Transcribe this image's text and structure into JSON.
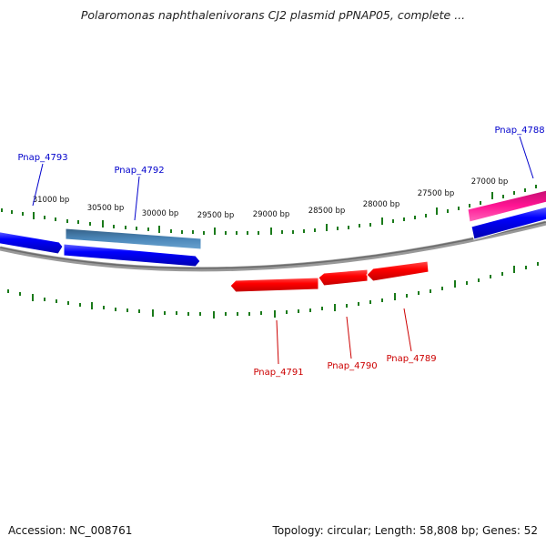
{
  "title": "Polaromonas naphthalenivorans CJ2 plasmid pPNAP05, complete ...",
  "footer": {
    "accession": "Accession: NC_008761",
    "summary": "Topology: circular; Length: 58,808 bp; Genes: 52"
  },
  "scale_labels": [
    "31000 bp",
    "30500 bp",
    "30000 bp",
    "29500 bp",
    "29000 bp",
    "28500 bp",
    "28000 bp",
    "27500 bp",
    "27000 bp"
  ],
  "gene_labels": {
    "top": [
      "Pnap_4793",
      "Pnap_4792",
      "Pnap_4788"
    ],
    "bottom": [
      "Pnap_4791",
      "Pnap_4790",
      "Pnap_4789"
    ]
  },
  "colors": {
    "forward_gene": "#0000ff",
    "forward_gene_alt": "#4682b4",
    "forward_gene_pink": "#ff1493",
    "reverse_gene": "#ff0000",
    "backbone": "#888888",
    "tick": "#1a7a1a",
    "top_label": "#0000cc",
    "bottom_label": "#cc0000"
  }
}
